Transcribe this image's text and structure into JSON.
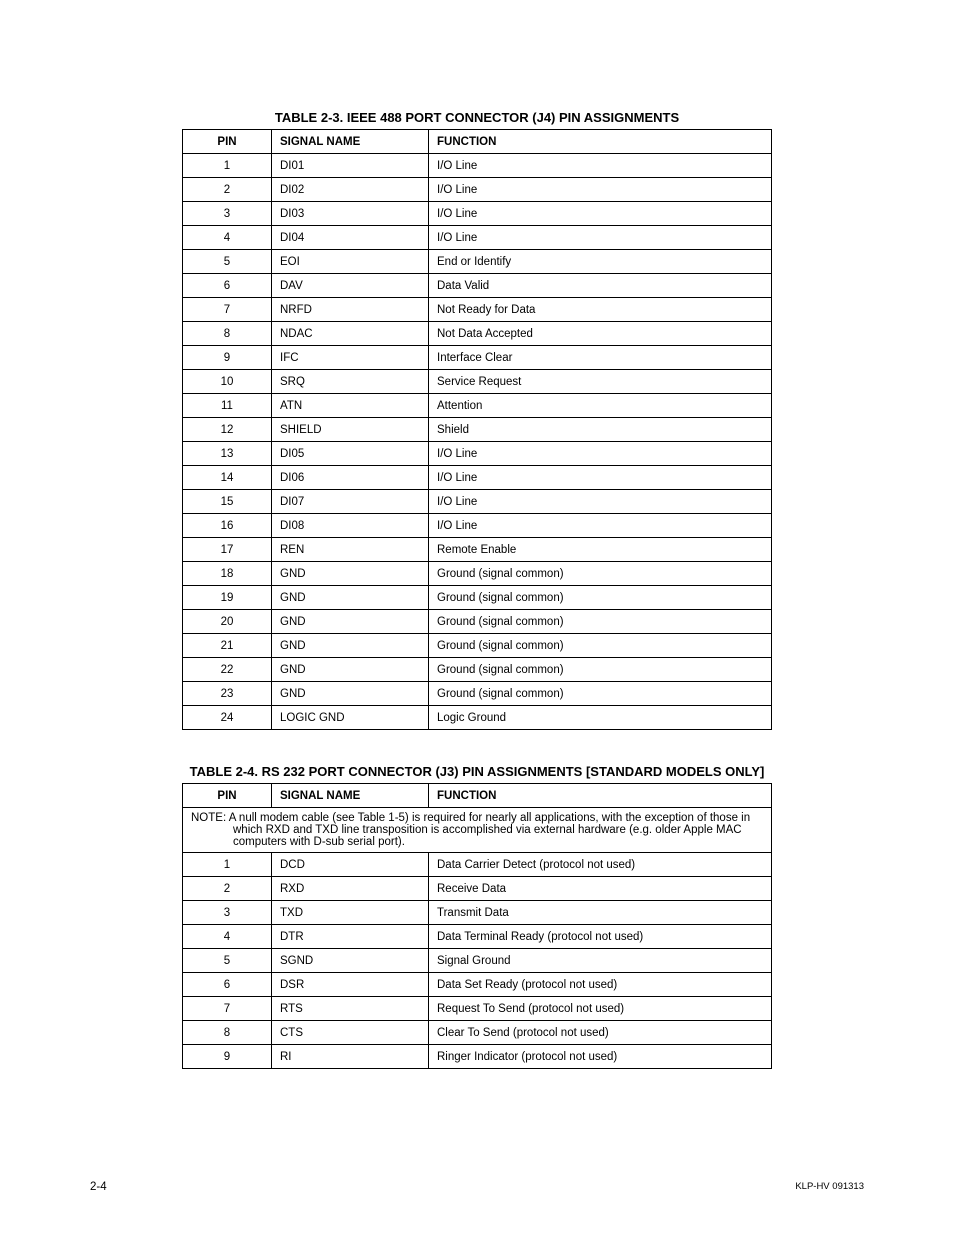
{
  "table1": {
    "title": "TABLE 2-3.  IEEE 488 PORT CONNECTOR (J4) PIN ASSIGNMENTS",
    "headers": {
      "pin": "PIN",
      "signal": "SIGNAL NAME",
      "function": "FUNCTION"
    },
    "rows": [
      {
        "pin": "1",
        "signal": "DI01",
        "function": "I/O Line"
      },
      {
        "pin": "2",
        "signal": "DI02",
        "function": "I/O Line"
      },
      {
        "pin": "3",
        "signal": "DI03",
        "function": "I/O Line"
      },
      {
        "pin": "4",
        "signal": "DI04",
        "function": "I/O Line"
      },
      {
        "pin": "5",
        "signal": "EOI",
        "function": "End or Identify"
      },
      {
        "pin": "6",
        "signal": "DAV",
        "function": "Data Valid"
      },
      {
        "pin": "7",
        "signal": "NRFD",
        "function": "Not Ready for Data"
      },
      {
        "pin": "8",
        "signal": "NDAC",
        "function": "Not Data Accepted"
      },
      {
        "pin": "9",
        "signal": "IFC",
        "function": "Interface Clear"
      },
      {
        "pin": "10",
        "signal": "SRQ",
        "function": "Service Request"
      },
      {
        "pin": "11",
        "signal": "ATN",
        "function": "Attention"
      },
      {
        "pin": "12",
        "signal": "SHIELD",
        "function": "Shield"
      },
      {
        "pin": "13",
        "signal": "DI05",
        "function": "I/O Line"
      },
      {
        "pin": "14",
        "signal": "DI06",
        "function": "I/O Line"
      },
      {
        "pin": "15",
        "signal": "DI07",
        "function": "I/O Line"
      },
      {
        "pin": "16",
        "signal": "DI08",
        "function": "I/O Line"
      },
      {
        "pin": "17",
        "signal": "REN",
        "function": "Remote Enable"
      },
      {
        "pin": "18",
        "signal": "GND",
        "function": "Ground (signal common)"
      },
      {
        "pin": "19",
        "signal": "GND",
        "function": "Ground (signal common)"
      },
      {
        "pin": "20",
        "signal": "GND",
        "function": "Ground (signal common)"
      },
      {
        "pin": "21",
        "signal": "GND",
        "function": "Ground (signal common)"
      },
      {
        "pin": "22",
        "signal": "GND",
        "function": "Ground (signal common)"
      },
      {
        "pin": "23",
        "signal": "GND",
        "function": "Ground (signal common)"
      },
      {
        "pin": "24",
        "signal": "LOGIC GND",
        "function": "Logic Ground"
      }
    ]
  },
  "table2": {
    "title": "TABLE 2-4.  RS 232 PORT CONNECTOR (J3) PIN ASSIGNMENTS [STANDARD MODELS ONLY]",
    "headers": {
      "pin": "PIN",
      "signal": "SIGNAL NAME",
      "function": "FUNCTION"
    },
    "note": "NOTE: A null modem cable (see Table 1-5) is required for nearly all applications, with the exception of those in which RXD and TXD line transposition is accomplished via external hardware (e.g. older Apple MAC computers with D-sub serial port).",
    "rows": [
      {
        "pin": "1",
        "signal": "DCD",
        "function": "Data Carrier Detect (protocol not used)"
      },
      {
        "pin": "2",
        "signal": "RXD",
        "function": "Receive Data"
      },
      {
        "pin": "3",
        "signal": "TXD",
        "function": "Transmit Data"
      },
      {
        "pin": "4",
        "signal": "DTR",
        "function": "Data Terminal Ready (protocol not used)"
      },
      {
        "pin": "5",
        "signal": "SGND",
        "function": "Signal Ground"
      },
      {
        "pin": "6",
        "signal": "DSR",
        "function": "Data Set Ready (protocol not used)"
      },
      {
        "pin": "7",
        "signal": "RTS",
        "function": "Request To Send (protocol not used)"
      },
      {
        "pin": "8",
        "signal": "CTS",
        "function": "Clear To Send (protocol not used)"
      },
      {
        "pin": "9",
        "signal": "RI",
        "function": "Ringer Indicator (protocol not used)"
      }
    ]
  },
  "footer": {
    "left": "2-4",
    "right": "KLP-HV 091313"
  }
}
